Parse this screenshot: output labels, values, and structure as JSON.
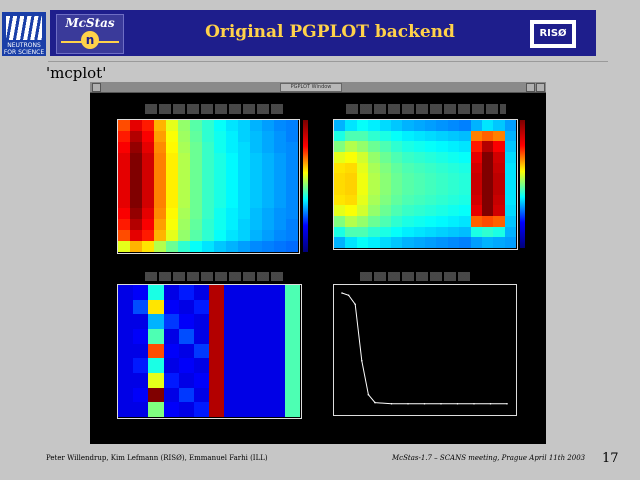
{
  "header": {
    "logo_text": "NEUTRONS FOR SCIENCE",
    "mcstas_label": "McStas",
    "mcstas_symbol": "n",
    "title": "Original PGPLOT backend",
    "riso_label": "RISØ"
  },
  "slide_label": "'mcplot'",
  "window": {
    "title": "PGPLOT Window"
  },
  "footer": {
    "left": "Peter Willendrup, Kim Lefmann (RISØ), Emmanuel Farhi (ILL)",
    "right": "McStas-1.7 – SCANS meeting, Prague April 11th 2003",
    "page": "17"
  },
  "colors": {
    "banner": "#1e1e8c",
    "title": "#ffd24a",
    "background": "#c6c6c6"
  },
  "chart_data": [
    {
      "type": "heatmap",
      "rows": 12,
      "cols": 15,
      "values": [
        [
          0.8,
          0.9,
          0.85,
          0.7,
          0.6,
          0.52,
          0.46,
          0.42,
          0.38,
          0.35,
          0.33,
          0.3,
          0.28,
          0.26,
          0.25
        ],
        [
          0.85,
          0.95,
          0.88,
          0.72,
          0.62,
          0.53,
          0.47,
          0.42,
          0.39,
          0.36,
          0.33,
          0.31,
          0.29,
          0.27,
          0.25
        ],
        [
          0.88,
          0.98,
          0.9,
          0.74,
          0.63,
          0.54,
          0.48,
          0.43,
          0.39,
          0.36,
          0.34,
          0.31,
          0.29,
          0.27,
          0.26
        ],
        [
          0.9,
          1.0,
          0.92,
          0.75,
          0.64,
          0.55,
          0.48,
          0.43,
          0.4,
          0.37,
          0.34,
          0.32,
          0.3,
          0.28,
          0.26
        ],
        [
          0.9,
          1.0,
          0.92,
          0.75,
          0.64,
          0.55,
          0.48,
          0.43,
          0.4,
          0.37,
          0.34,
          0.32,
          0.3,
          0.28,
          0.26
        ],
        [
          0.9,
          1.0,
          0.92,
          0.75,
          0.64,
          0.55,
          0.48,
          0.43,
          0.4,
          0.37,
          0.34,
          0.32,
          0.3,
          0.28,
          0.26
        ],
        [
          0.9,
          1.0,
          0.92,
          0.75,
          0.64,
          0.55,
          0.48,
          0.43,
          0.4,
          0.37,
          0.34,
          0.32,
          0.3,
          0.28,
          0.26
        ],
        [
          0.9,
          1.0,
          0.92,
          0.75,
          0.64,
          0.55,
          0.48,
          0.43,
          0.4,
          0.37,
          0.34,
          0.32,
          0.3,
          0.28,
          0.26
        ],
        [
          0.88,
          0.98,
          0.9,
          0.74,
          0.63,
          0.54,
          0.48,
          0.43,
          0.39,
          0.36,
          0.34,
          0.31,
          0.29,
          0.27,
          0.26
        ],
        [
          0.85,
          0.95,
          0.88,
          0.72,
          0.62,
          0.53,
          0.47,
          0.42,
          0.39,
          0.36,
          0.33,
          0.31,
          0.29,
          0.27,
          0.25
        ],
        [
          0.8,
          0.9,
          0.85,
          0.7,
          0.6,
          0.52,
          0.46,
          0.42,
          0.38,
          0.35,
          0.33,
          0.3,
          0.28,
          0.26,
          0.25
        ],
        [
          0.6,
          0.7,
          0.65,
          0.55,
          0.48,
          0.42,
          0.38,
          0.35,
          0.32,
          0.3,
          0.28,
          0.26,
          0.25,
          0.24,
          0.23
        ]
      ]
    },
    {
      "type": "heatmap",
      "rows": 12,
      "cols": 16,
      "values": [
        [
          0.3,
          0.35,
          0.38,
          0.36,
          0.34,
          0.32,
          0.3,
          0.29,
          0.28,
          0.27,
          0.26,
          0.25,
          0.3,
          0.35,
          0.32,
          0.28
        ],
        [
          0.4,
          0.45,
          0.45,
          0.42,
          0.4,
          0.38,
          0.36,
          0.35,
          0.34,
          0.33,
          0.32,
          0.31,
          0.75,
          0.78,
          0.75,
          0.3
        ],
        [
          0.5,
          0.55,
          0.52,
          0.48,
          0.45,
          0.42,
          0.4,
          0.39,
          0.38,
          0.37,
          0.36,
          0.35,
          0.85,
          0.95,
          0.88,
          0.32
        ],
        [
          0.6,
          0.62,
          0.58,
          0.52,
          0.48,
          0.45,
          0.43,
          0.42,
          0.41,
          0.4,
          0.39,
          0.38,
          0.9,
          1.0,
          0.92,
          0.34
        ],
        [
          0.65,
          0.66,
          0.6,
          0.54,
          0.5,
          0.47,
          0.45,
          0.44,
          0.43,
          0.42,
          0.41,
          0.4,
          0.92,
          1.0,
          0.93,
          0.35
        ],
        [
          0.66,
          0.67,
          0.61,
          0.55,
          0.51,
          0.48,
          0.46,
          0.45,
          0.44,
          0.43,
          0.42,
          0.41,
          0.93,
          1.0,
          0.94,
          0.35
        ],
        [
          0.66,
          0.67,
          0.61,
          0.55,
          0.51,
          0.48,
          0.46,
          0.45,
          0.44,
          0.43,
          0.42,
          0.41,
          0.93,
          1.0,
          0.94,
          0.35
        ],
        [
          0.65,
          0.66,
          0.6,
          0.54,
          0.5,
          0.47,
          0.45,
          0.44,
          0.43,
          0.42,
          0.41,
          0.4,
          0.92,
          1.0,
          0.93,
          0.35
        ],
        [
          0.6,
          0.62,
          0.58,
          0.52,
          0.48,
          0.45,
          0.43,
          0.42,
          0.41,
          0.4,
          0.39,
          0.38,
          0.9,
          1.0,
          0.92,
          0.34
        ],
        [
          0.5,
          0.55,
          0.52,
          0.48,
          0.45,
          0.42,
          0.4,
          0.39,
          0.38,
          0.37,
          0.36,
          0.35,
          0.78,
          0.8,
          0.78,
          0.32
        ],
        [
          0.4,
          0.45,
          0.45,
          0.42,
          0.4,
          0.38,
          0.36,
          0.35,
          0.34,
          0.33,
          0.32,
          0.31,
          0.4,
          0.42,
          0.4,
          0.3
        ],
        [
          0.3,
          0.35,
          0.38,
          0.36,
          0.34,
          0.32,
          0.3,
          0.29,
          0.28,
          0.27,
          0.26,
          0.25,
          0.28,
          0.3,
          0.29,
          0.28
        ]
      ]
    },
    {
      "type": "heatmap",
      "rows": 9,
      "cols": 12,
      "values": [
        [
          0.1,
          0.12,
          0.4,
          0.1,
          0.15,
          0.1,
          0.95,
          0.1,
          0.1,
          0.1,
          0.1,
          0.45
        ],
        [
          0.1,
          0.2,
          0.65,
          0.12,
          0.1,
          0.15,
          0.95,
          0.1,
          0.1,
          0.1,
          0.1,
          0.45
        ],
        [
          0.1,
          0.1,
          0.3,
          0.18,
          0.12,
          0.1,
          0.95,
          0.1,
          0.1,
          0.1,
          0.1,
          0.45
        ],
        [
          0.1,
          0.12,
          0.45,
          0.1,
          0.2,
          0.1,
          0.95,
          0.1,
          0.1,
          0.1,
          0.1,
          0.45
        ],
        [
          0.1,
          0.1,
          0.8,
          0.12,
          0.1,
          0.18,
          0.95,
          0.1,
          0.1,
          0.1,
          0.1,
          0.45
        ],
        [
          0.1,
          0.15,
          0.4,
          0.1,
          0.12,
          0.1,
          0.95,
          0.1,
          0.1,
          0.1,
          0.1,
          0.45
        ],
        [
          0.1,
          0.1,
          0.6,
          0.15,
          0.1,
          0.12,
          0.95,
          0.1,
          0.1,
          0.1,
          0.1,
          0.45
        ],
        [
          0.1,
          0.12,
          1.0,
          0.1,
          0.18,
          0.1,
          0.95,
          0.1,
          0.1,
          0.1,
          0.1,
          0.45
        ],
        [
          0.1,
          0.1,
          0.5,
          0.12,
          0.1,
          0.15,
          0.95,
          0.1,
          0.1,
          0.1,
          0.1,
          0.45
        ]
      ]
    },
    {
      "type": "line",
      "x": [
        0,
        0.04,
        0.08,
        0.12,
        0.16,
        0.2,
        0.3,
        0.4,
        0.5,
        0.6,
        0.7,
        0.8,
        0.9,
        1.0
      ],
      "y": [
        1.0,
        0.98,
        0.9,
        0.4,
        0.1,
        0.03,
        0.02,
        0.02,
        0.02,
        0.02,
        0.02,
        0.02,
        0.02,
        0.02
      ]
    }
  ]
}
